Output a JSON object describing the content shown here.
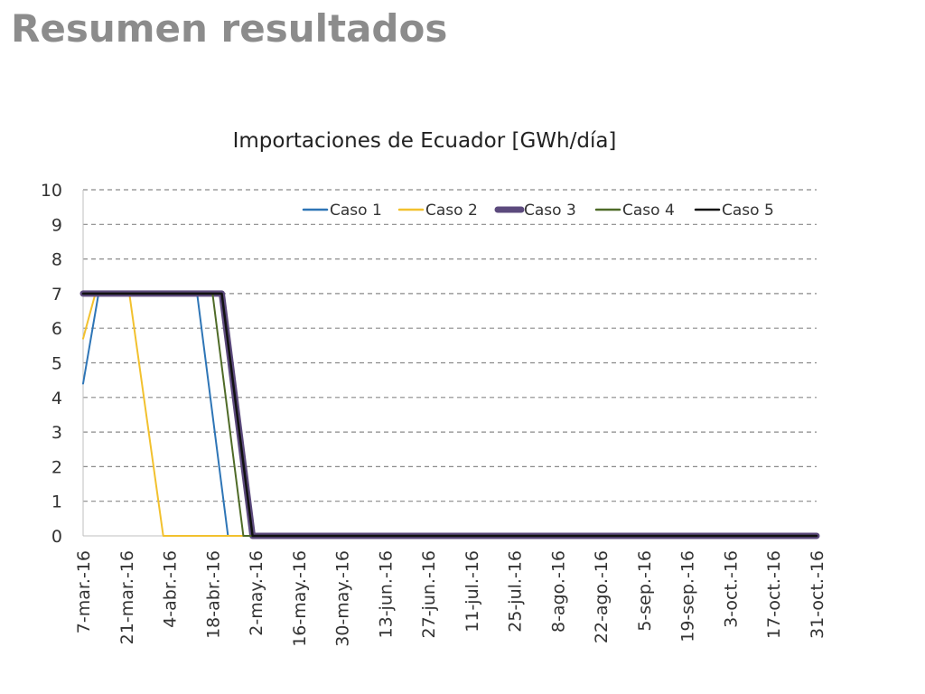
{
  "slide": {
    "title": "Resumen resultados"
  },
  "chart_data": {
    "type": "line",
    "title": "Importaciones de Ecuador [GWh/día]",
    "xlabel": "",
    "ylabel": "",
    "ylim": [
      0,
      10
    ],
    "yticks": [
      0,
      1,
      2,
      3,
      4,
      5,
      6,
      7,
      8,
      9,
      10
    ],
    "xlim": [
      "2016-03-07",
      "2016-10-31"
    ],
    "xtick_labels": [
      "7-mar.-16",
      "21-mar.-16",
      "4-abr.-16",
      "18-abr.-16",
      "2-may.-16",
      "16-may.-16",
      "30-may.-16",
      "13-jun.-16",
      "27-jun.-16",
      "11-jul.-16",
      "25-jul.-16",
      "8-ago.-16",
      "22-ago.-16",
      "5-sep.-16",
      "19-sep.-16",
      "3-oct.-16",
      "17-oct.-16",
      "31-oct.-16"
    ],
    "grid": "horizontal dashed",
    "legend": "top",
    "series": [
      {
        "name": "Caso 1",
        "color": "#2e75b6",
        "width": 2,
        "points": [
          [
            "2016-03-07",
            4.4
          ],
          [
            "2016-03-12",
            7
          ],
          [
            "2016-04-13",
            7
          ],
          [
            "2016-04-23",
            0
          ],
          [
            "2016-10-31",
            0
          ]
        ]
      },
      {
        "name": "Caso 2",
        "color": "#f2c12e",
        "width": 2,
        "points": [
          [
            "2016-03-07",
            5.7
          ],
          [
            "2016-03-11",
            7
          ],
          [
            "2016-03-22",
            7
          ],
          [
            "2016-04-02",
            0
          ],
          [
            "2016-10-31",
            0
          ]
        ]
      },
      {
        "name": "Caso 3",
        "color": "#5c4a7d",
        "width": 7,
        "points": [
          [
            "2016-03-07",
            7
          ],
          [
            "2016-04-21",
            7
          ],
          [
            "2016-05-01",
            0
          ],
          [
            "2016-10-31",
            0
          ]
        ]
      },
      {
        "name": "Caso 4",
        "color": "#4f6b28",
        "width": 2,
        "points": [
          [
            "2016-03-07",
            7
          ],
          [
            "2016-04-18",
            7
          ],
          [
            "2016-04-28",
            0
          ],
          [
            "2016-10-31",
            0
          ]
        ]
      },
      {
        "name": "Caso 5",
        "color": "#111111",
        "width": 2.5,
        "points": [
          [
            "2016-03-07",
            7
          ],
          [
            "2016-04-21",
            7
          ],
          [
            "2016-05-01",
            0
          ],
          [
            "2016-10-31",
            0
          ]
        ]
      }
    ]
  }
}
